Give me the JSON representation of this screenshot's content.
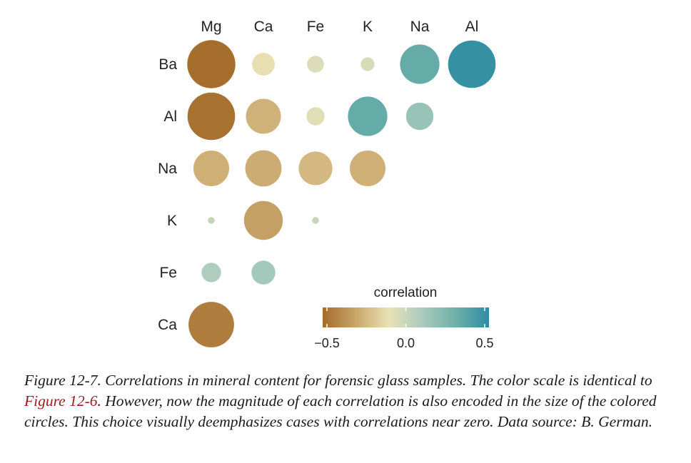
{
  "chart_data": {
    "type": "heatmap",
    "title": "",
    "columns": [
      "Mg",
      "Ca",
      "Fe",
      "K",
      "Na",
      "Al"
    ],
    "rows": [
      "Ba",
      "Al",
      "Na",
      "K",
      "Fe",
      "Ca"
    ],
    "cells": [
      {
        "row": "Ba",
        "col": "Mg",
        "value": -0.49
      },
      {
        "row": "Ba",
        "col": "Ca",
        "value": -0.11
      },
      {
        "row": "Ba",
        "col": "Fe",
        "value": -0.06
      },
      {
        "row": "Ba",
        "col": "K",
        "value": -0.04
      },
      {
        "row": "Ba",
        "col": "Na",
        "value": 0.33
      },
      {
        "row": "Ba",
        "col": "Al",
        "value": 0.48
      },
      {
        "row": "Al",
        "col": "Mg",
        "value": -0.48
      },
      {
        "row": "Al",
        "col": "Ca",
        "value": -0.26
      },
      {
        "row": "Al",
        "col": "Fe",
        "value": -0.07
      },
      {
        "row": "Al",
        "col": "K",
        "value": 0.33
      },
      {
        "row": "Al",
        "col": "Na",
        "value": 0.16
      },
      {
        "row": "Na",
        "col": "Mg",
        "value": -0.27
      },
      {
        "row": "Na",
        "col": "Ca",
        "value": -0.28
      },
      {
        "row": "Na",
        "col": "Fe",
        "value": -0.24
      },
      {
        "row": "Na",
        "col": "K",
        "value": -0.27
      },
      {
        "row": "K",
        "col": "Mg",
        "value": 0.01
      },
      {
        "row": "K",
        "col": "Ca",
        "value": -0.32
      },
      {
        "row": "K",
        "col": "Fe",
        "value": 0.01
      },
      {
        "row": "Fe",
        "col": "Mg",
        "value": 0.08
      },
      {
        "row": "Fe",
        "col": "Ca",
        "value": 0.12
      },
      {
        "row": "Ca",
        "col": "Mg",
        "value": -0.44
      }
    ],
    "legend": {
      "title": "correlation",
      "ticks": [
        -0.5,
        0.0,
        0.5
      ],
      "tick_labels": [
        "−0.5",
        "0.0",
        "0.5"
      ],
      "range": [
        -0.5,
        0.5
      ]
    },
    "color_scale": [
      "#a36b29",
      "#c9a66a",
      "#e9e2b6",
      "#a9cbbe",
      "#6fb0a8",
      "#2f8ca3"
    ]
  },
  "caption": {
    "label": "Figure 12-7.",
    "text_1": " Correlations in mineral content for forensic glass samples. The color scale is identical to ",
    "xref": "Figure 12-6",
    "text_2": ". However, now the magnitude of each correlation is also encoded in the size of the colored circles. This choice visually deemphasizes cases with correlations near zero. Data source: B. German."
  }
}
